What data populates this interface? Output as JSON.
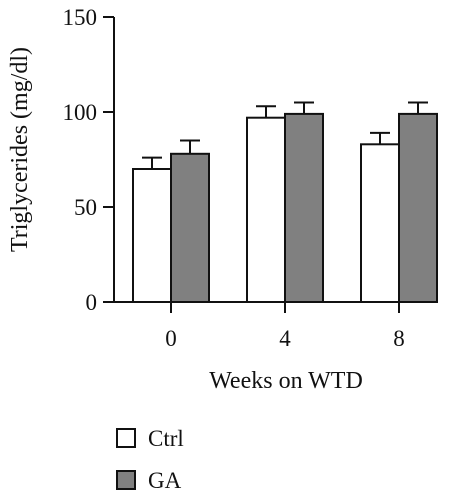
{
  "chart_data": {
    "type": "bar",
    "categories": [
      "0",
      "4",
      "8"
    ],
    "series": [
      {
        "name": "Ctrl",
        "values": [
          70,
          97,
          83
        ],
        "errors": [
          6,
          6,
          6
        ],
        "color": "#ffffff"
      },
      {
        "name": "GA",
        "values": [
          78,
          99,
          99
        ],
        "errors": [
          7,
          6,
          6
        ],
        "color": "#808080"
      }
    ],
    "xlabel": "Weeks on WTD",
    "ylabel": "Triglycerides (mg/dl)",
    "ylim": [
      0,
      150
    ],
    "yticks": [
      0,
      50,
      100,
      150
    ],
    "grid": false,
    "legend_position": "bottom-left"
  }
}
